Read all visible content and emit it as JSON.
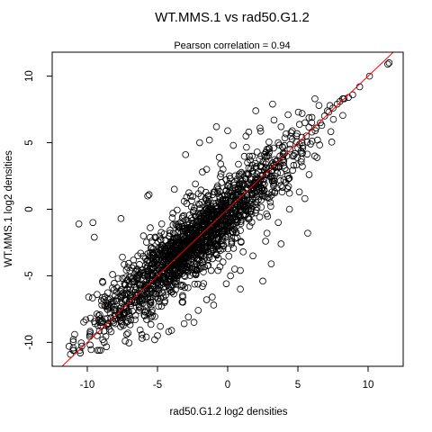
{
  "chart_data": {
    "type": "scatter",
    "title": "WT.MMS.1 vs rad50.G1.2",
    "subtitle": "Pearson correlation =  0.94",
    "xlabel": "rad50.G1.2 log2 densities",
    "ylabel": "WT.MMS.1 log2 densities",
    "xlim": [
      -12.5,
      12.5
    ],
    "ylim": [
      -11.8,
      11.8
    ],
    "x_ticks": [
      -10,
      -5,
      0,
      5,
      10
    ],
    "y_ticks": [
      -10,
      -5,
      0,
      5,
      10
    ],
    "x_tick_labels": [
      "-10",
      "-5",
      "0",
      "5",
      "10"
    ],
    "y_tick_labels": [
      "-10",
      "-5",
      "0",
      "5",
      "10"
    ],
    "grid": false,
    "reference_line": {
      "slope": 1.0,
      "intercept": 0.0,
      "color": "#ff0000"
    },
    "point_color": "#000000",
    "points": [
      [
        11.5,
        11.0
      ],
      [
        11.4,
        10.9
      ],
      [
        10.1,
        10.0
      ],
      [
        9.4,
        9.2
      ],
      [
        8.9,
        8.6
      ],
      [
        8.6,
        8.4
      ],
      [
        8.3,
        8.3
      ],
      [
        8.0,
        8.1
      ],
      [
        7.8,
        7.9
      ],
      [
        7.5,
        7.6
      ],
      [
        7.2,
        7.3
      ],
      [
        6.9,
        7.0
      ],
      [
        6.6,
        6.5
      ],
      [
        6.3,
        6.1
      ],
      [
        6.0,
        5.8
      ],
      [
        5.6,
        5.5
      ],
      [
        5.3,
        5.0
      ],
      [
        5.0,
        4.6
      ],
      [
        4.6,
        5.9
      ],
      [
        4.2,
        4.0
      ],
      [
        3.9,
        4.7
      ],
      [
        3.5,
        3.2
      ],
      [
        3.1,
        2.9
      ],
      [
        2.7,
        3.4
      ],
      [
        2.3,
        2.1
      ],
      [
        1.9,
        1.8
      ],
      [
        1.5,
        2.6
      ],
      [
        1.1,
        0.9
      ],
      [
        0.7,
        0.4
      ],
      [
        0.3,
        1.2
      ],
      [
        -0.1,
        -0.3
      ],
      [
        -0.5,
        -0.8
      ],
      [
        -0.9,
        0.2
      ],
      [
        -1.3,
        -1.5
      ],
      [
        -1.7,
        -1.2
      ],
      [
        -2.1,
        -2.4
      ],
      [
        -2.5,
        -1.8
      ],
      [
        -2.9,
        -3.1
      ],
      [
        -3.3,
        -2.5
      ],
      [
        -3.7,
        -3.9
      ],
      [
        -4.1,
        -3.4
      ],
      [
        -4.5,
        -4.8
      ],
      [
        -4.9,
        -4.2
      ],
      [
        -5.3,
        -5.6
      ],
      [
        -5.7,
        -5.0
      ],
      [
        -6.1,
        -6.4
      ],
      [
        -6.5,
        -5.9
      ],
      [
        -6.9,
        -7.1
      ],
      [
        -7.3,
        -6.8
      ],
      [
        -7.7,
        -8.0
      ],
      [
        -8.1,
        -7.6
      ],
      [
        -8.5,
        -8.8
      ],
      [
        -8.9,
        -8.4
      ],
      [
        -9.3,
        -9.5
      ],
      [
        -9.8,
        -9.3
      ],
      [
        -10.5,
        -10.8
      ],
      [
        -11.3,
        -10.3
      ],
      [
        -10.5,
        -10.8
      ],
      [
        -9.0,
        -8.5
      ],
      [
        -8.3,
        -9.2
      ],
      [
        -10.6,
        -1.1
      ],
      [
        -9.6,
        -1.0
      ],
      [
        -9.5,
        -2.1
      ],
      [
        -7.6,
        -0.7
      ],
      [
        -5.6,
        1.1
      ],
      [
        -5.7,
        1.0
      ],
      [
        -2.0,
        5.0
      ],
      [
        -3.0,
        4.1
      ],
      [
        -1.3,
        5.2
      ],
      [
        -0.8,
        6.2
      ],
      [
        0.0,
        5.9
      ],
      [
        2.0,
        7.4
      ],
      [
        3.2,
        7.9
      ],
      [
        0.9,
        -6.0
      ],
      [
        2.5,
        -5.4
      ],
      [
        3.8,
        -2.6
      ],
      [
        5.7,
        -1.8
      ],
      [
        5.5,
        0.8
      ],
      [
        3.1,
        -4.1
      ],
      [
        1.1,
        -3.2
      ],
      [
        -1.0,
        -7.2
      ],
      [
        -2.4,
        -8.5
      ],
      [
        -4.8,
        -8.8
      ],
      [
        -3.2,
        -6.6
      ],
      [
        -6.4,
        -3.5
      ],
      [
        -7.8,
        -5.2
      ],
      [
        -8.5,
        -6.8
      ],
      [
        -9.2,
        -8.0
      ],
      [
        -7.1,
        -9.3
      ],
      [
        -5.2,
        -9.8
      ],
      [
        -6.0,
        -2.0
      ],
      [
        -3.8,
        1.5
      ],
      [
        -1.8,
        2.8
      ],
      [
        1.5,
        5.8
      ],
      [
        3.8,
        6.2
      ],
      [
        4.4,
        1.2
      ],
      [
        2.8,
        -1.8
      ],
      [
        0.5,
        -4.5
      ],
      [
        -1.8,
        -5.8
      ],
      [
        -4.5,
        -7.0
      ],
      [
        -10.9,
        -9.4
      ],
      [
        -11.2,
        -10.9
      ],
      [
        -9.8,
        -10.2
      ],
      [
        -8.8,
        -10.0
      ],
      [
        -7.3,
        -9.9
      ],
      [
        -5.8,
        -9.6
      ],
      [
        -4.2,
        -9.2
      ],
      [
        -2.8,
        -8.1
      ],
      [
        -1.5,
        -6.8
      ],
      [
        0.2,
        -5.0
      ],
      [
        -6.8,
        -4.4
      ],
      [
        -7.5,
        -3.6
      ],
      [
        -8.2,
        -4.9
      ],
      [
        -8.9,
        -5.5
      ],
      [
        -9.3,
        -6.4
      ],
      [
        -8.7,
        -7.3
      ],
      [
        -7.9,
        -6.2
      ],
      [
        -7.0,
        -5.1
      ],
      [
        -6.2,
        -3.3
      ],
      [
        -5.4,
        -2.4
      ],
      [
        -4.7,
        -1.1
      ],
      [
        -3.9,
        -0.3
      ],
      [
        -3.1,
        0.6
      ],
      [
        -2.3,
        1.9
      ],
      [
        -1.5,
        3.0
      ],
      [
        -0.6,
        3.9
      ],
      [
        0.4,
        4.8
      ],
      [
        1.3,
        5.5
      ],
      [
        2.3,
        6.1
      ],
      [
        3.3,
        6.7
      ],
      [
        4.3,
        7.1
      ],
      [
        5.3,
        7.2
      ],
      [
        6.0,
        6.9
      ],
      [
        6.4,
        5.2
      ],
      [
        6.2,
        4.0
      ],
      [
        5.8,
        2.6
      ],
      [
        5.1,
        1.3
      ],
      [
        4.4,
        0.0
      ],
      [
        3.6,
        -1.0
      ],
      [
        2.7,
        -2.4
      ],
      [
        1.8,
        -3.5
      ],
      [
        0.9,
        -4.6
      ],
      [
        -0.1,
        -5.6
      ],
      [
        -1.1,
        -6.6
      ],
      [
        -2.1,
        -7.6
      ],
      [
        -3.1,
        -8.6
      ],
      [
        -4.0,
        -9.1
      ],
      [
        -5.0,
        -9.5
      ],
      [
        -6.1,
        -9.7
      ],
      [
        -7.2,
        -9.4
      ],
      [
        -0.5,
        3.4
      ],
      [
        0.8,
        2.5
      ],
      [
        2.1,
        4.3
      ],
      [
        1.6,
        3.7
      ],
      [
        -2.2,
        -0.9
      ],
      [
        -3.5,
        -2.8
      ],
      [
        -4.4,
        -5.5
      ],
      [
        -5.1,
        -3.8
      ],
      [
        -6.3,
        -7.6
      ],
      [
        -7.4,
        -7.8
      ],
      [
        3.6,
        5.0
      ],
      [
        4.7,
        3.3
      ],
      [
        5.5,
        6.5
      ],
      [
        6.7,
        6.3
      ],
      [
        7.1,
        7.4
      ],
      [
        6.5,
        7.8
      ],
      [
        5.9,
        4.9
      ],
      [
        4.0,
        2.2
      ],
      [
        2.6,
        1.0
      ],
      [
        1.0,
        -0.8
      ],
      [
        -0.4,
        -2.1
      ],
      [
        -1.6,
        -3.6
      ],
      [
        -2.8,
        -4.6
      ],
      [
        -4.0,
        -6.2
      ],
      [
        -5.5,
        -6.8
      ],
      [
        -6.6,
        -8.3
      ],
      [
        -8.0,
        -8.6
      ],
      [
        -8.9,
        -9.8
      ],
      [
        -10.1,
        -8.3
      ],
      [
        -9.9,
        -6.6
      ]
    ]
  }
}
